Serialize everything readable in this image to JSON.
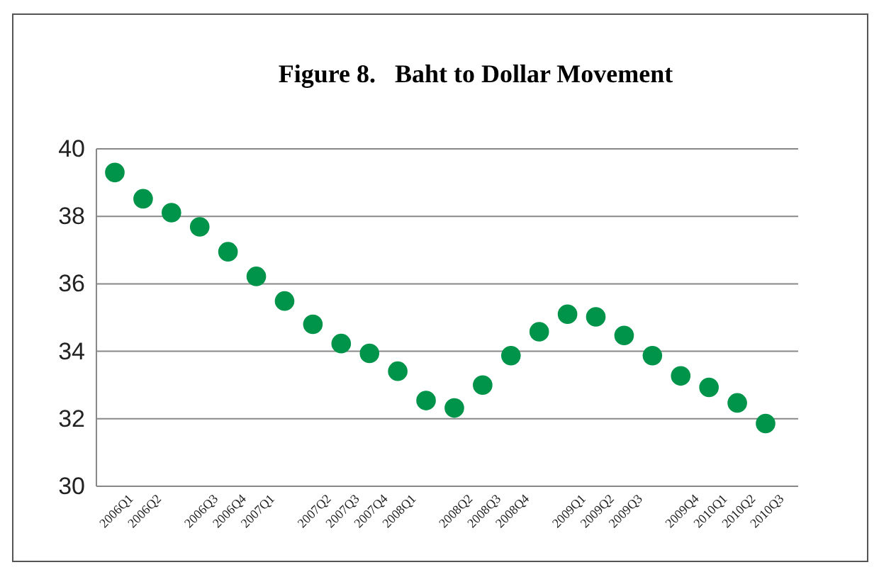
{
  "chart_data": {
    "type": "scatter",
    "title": "Figure 8.   Baht to Dollar Movement",
    "categories": [
      "2006Q1",
      "2006Q2",
      null,
      "2006Q3",
      "2006Q4",
      "2007Q1",
      null,
      "2007Q2",
      "2007Q3",
      "2007Q4",
      "2008Q1",
      null,
      "2008Q2",
      "2008Q3",
      "2008Q4",
      null,
      "2009Q1",
      "2009Q2",
      "2009Q3",
      null,
      "2009Q4",
      "2010Q1",
      "2010Q2",
      "2010Q3"
    ],
    "ylim": [
      30,
      40
    ],
    "yticks": [
      30,
      32,
      34,
      36,
      38,
      40
    ],
    "grid": "y",
    "marker": "circle",
    "series": [
      {
        "color": "#00944a",
        "values": [
          39.3,
          38.52,
          38.11,
          37.69,
          36.95,
          36.22,
          35.49,
          34.8,
          34.23,
          33.94,
          33.41,
          32.54,
          32.32,
          33.0,
          33.87,
          34.58,
          35.1,
          35.02,
          34.47,
          33.87,
          33.27,
          32.93,
          32.47,
          31.86
        ]
      }
    ]
  }
}
